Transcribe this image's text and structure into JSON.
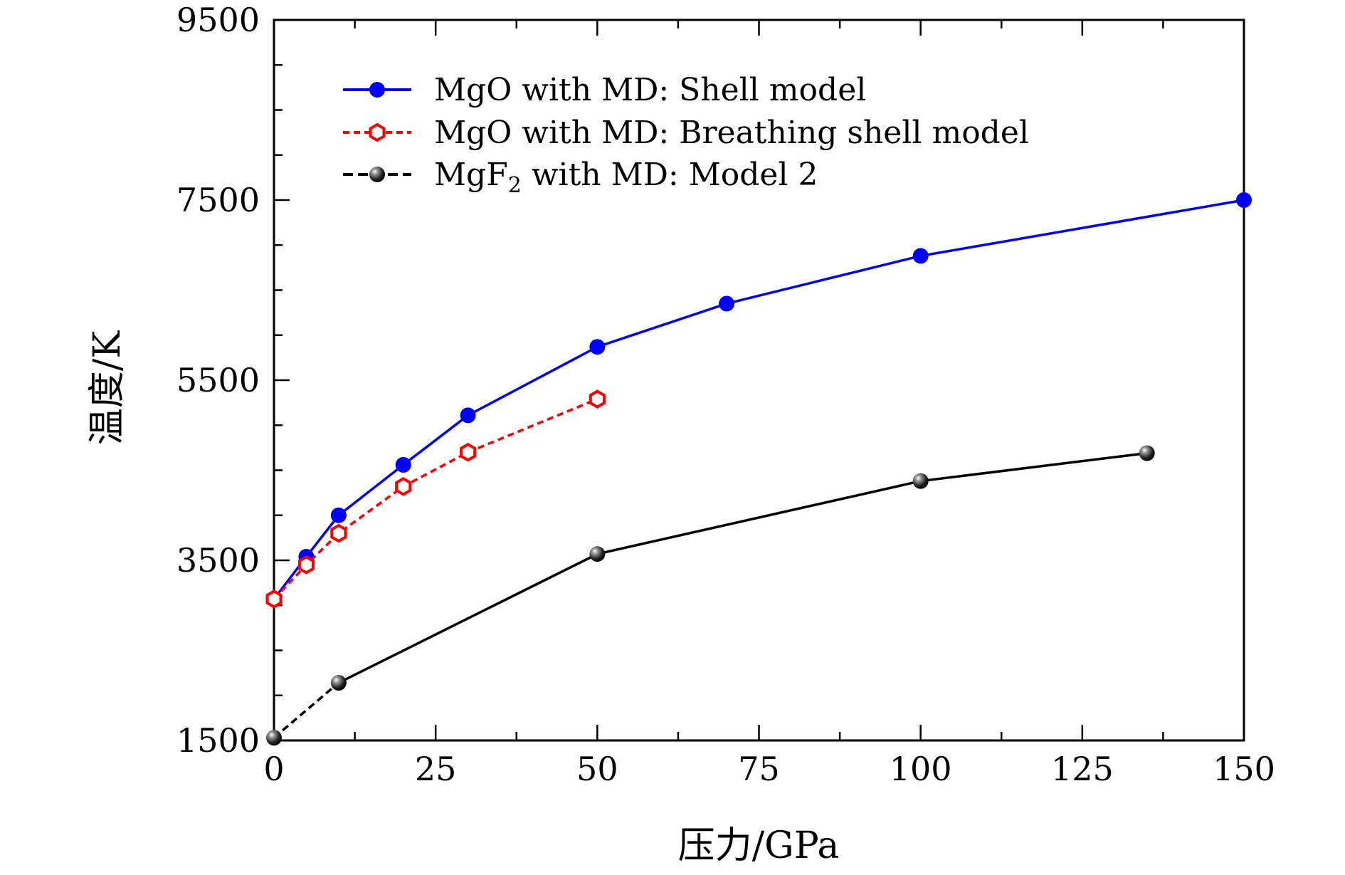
{
  "chart_data": {
    "type": "line",
    "xlabel": "压力/GPa",
    "ylabel": "温度/K",
    "xlim": [
      0,
      150
    ],
    "ylim": [
      1500,
      9500
    ],
    "x_ticks": [
      0,
      25,
      50,
      75,
      100,
      125,
      150
    ],
    "x_tick_labels": [
      "0",
      "25",
      "50",
      "75",
      "100",
      "125",
      "150"
    ],
    "y_ticks": [
      1500,
      3500,
      5500,
      7500,
      9500
    ],
    "y_tick_labels": [
      "1500",
      "3500",
      "5500",
      "7500",
      "9500"
    ],
    "grid": false,
    "legend_position": "top-left",
    "series": [
      {
        "name": "MgO with MD: Shell model",
        "color": "#0000ff",
        "line_style": "solid",
        "marker": "filled-circle",
        "x": [
          0,
          5,
          10,
          20,
          30,
          50,
          70,
          100,
          150
        ],
        "y": [
          3070,
          3540,
          4000,
          4560,
          5110,
          5870,
          6350,
          6880,
          7500
        ]
      },
      {
        "name": "MgO with MD: Breathing shell model",
        "color": "#ff0000",
        "line_style": "dashed",
        "marker": "open-hexagon",
        "x": [
          0,
          5,
          10,
          20,
          30,
          50
        ],
        "y": [
          3070,
          3450,
          3800,
          4320,
          4700,
          5290
        ]
      },
      {
        "name": "MgF",
        "name_subscript": "2",
        "name_suffix": " with MD: Model 2",
        "color": "#000000",
        "line_style": "dash-then-solid",
        "marker": "black-sphere",
        "x": [
          0,
          10,
          50,
          100,
          135
        ],
        "y": [
          1530,
          2140,
          3570,
          4380,
          4690
        ]
      }
    ]
  }
}
